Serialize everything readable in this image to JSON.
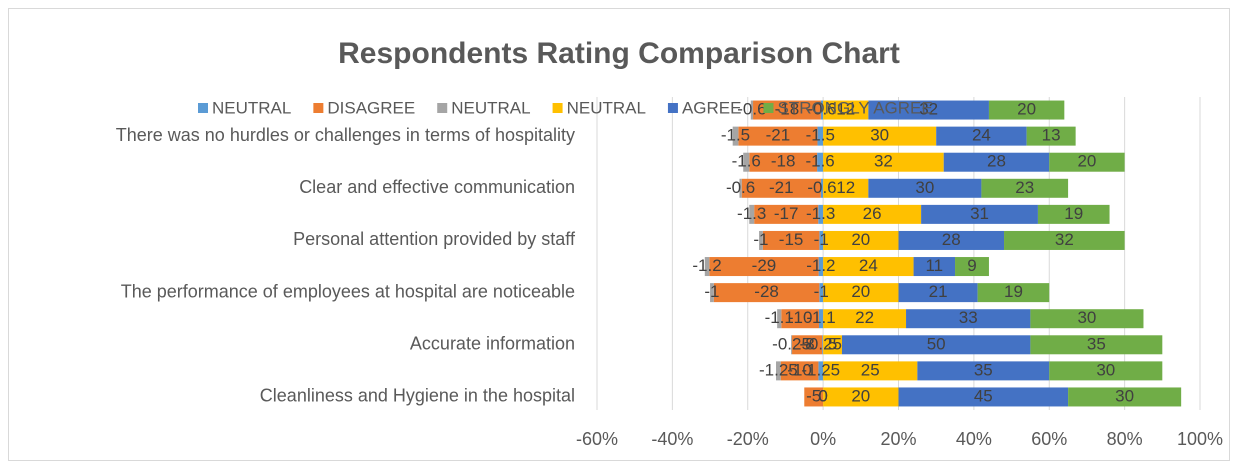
{
  "chart_data": {
    "type": "diverging_stacked_bar",
    "title": "Respondents Rating Comparison Chart",
    "categories": [
      null,
      "There was no hurdles or challenges in terms of hospitality",
      null,
      "Clear and effective communication",
      null,
      "Personal attention provided by staff",
      null,
      "The performance of employees at hospital are noticeable",
      null,
      "Accurate information ",
      null,
      "Cleanliness and Hygiene in the hospital"
    ],
    "series": [
      {
        "name": "NEUTRAL",
        "color": "#5b9bd5",
        "values": [
          -0.6,
          -1.5,
          -1.6,
          -0.6,
          -1.3,
          -1,
          -1.2,
          -1,
          -1.1,
          -0.25,
          -1.25,
          0
        ]
      },
      {
        "name": "DISAGREE",
        "color": "#ed7d31",
        "values": [
          -18,
          -21,
          -18,
          -21,
          -17,
          -15,
          -29,
          -28,
          -10,
          -8,
          -10,
          -5
        ]
      },
      {
        "name": "NEUTRAL",
        "color": "#a5a5a5",
        "values": [
          -0.6,
          -1.5,
          -1.6,
          -0.6,
          -1.3,
          -1,
          -1.2,
          -1,
          -1.1,
          -0.25,
          -1.25,
          0
        ]
      },
      {
        "name": "NEUTRAL",
        "color": "#ffc000",
        "values": [
          12,
          30,
          32,
          12,
          26,
          20,
          24,
          20,
          22,
          5,
          25,
          20
        ]
      },
      {
        "name": "AGREE",
        "color": "#4472c4",
        "values": [
          32,
          24,
          28,
          30,
          31,
          28,
          11,
          21,
          33,
          50,
          35,
          45
        ]
      },
      {
        "name": "STRONGLY AGREE",
        "color": "#70ad47",
        "values": [
          20,
          13,
          20,
          23,
          19,
          32,
          9,
          19,
          30,
          35,
          30,
          30
        ]
      }
    ],
    "xlim": [
      -60,
      100
    ],
    "xticks": [
      {
        "value": -60,
        "label": "-60%"
      },
      {
        "value": -40,
        "label": "-40%"
      },
      {
        "value": -20,
        "label": "-20%"
      },
      {
        "value": 0,
        "label": "0%"
      },
      {
        "value": 20,
        "label": "20%"
      },
      {
        "value": 40,
        "label": "40%"
      },
      {
        "value": 60,
        "label": "60%"
      },
      {
        "value": 80,
        "label": "80%"
      },
      {
        "value": 100,
        "label": "100%"
      }
    ],
    "grid": true,
    "legend": "top"
  }
}
